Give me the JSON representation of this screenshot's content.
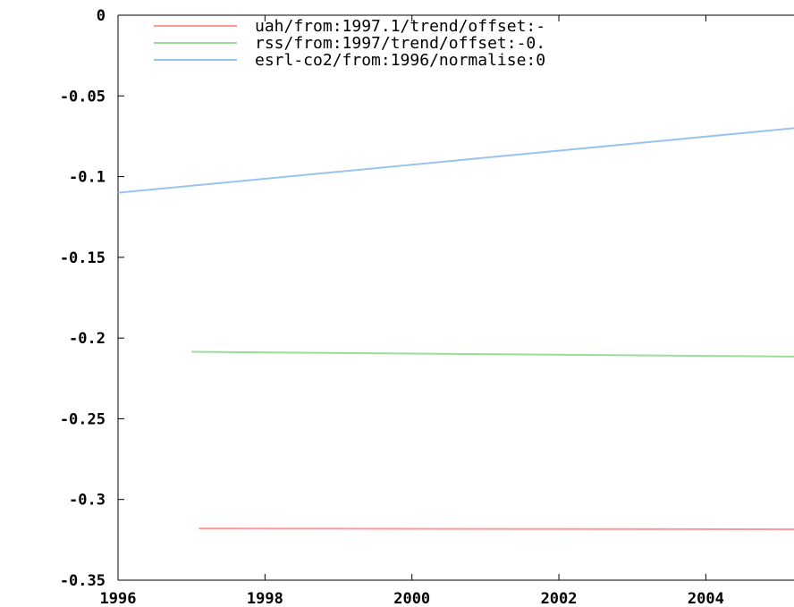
{
  "chart_data": {
    "type": "line",
    "title": "",
    "xlabel": "",
    "ylabel": "",
    "xlim": [
      1996,
      2005.2
    ],
    "ylim": [
      -0.35,
      0
    ],
    "x_ticks": [
      1996,
      1998,
      2000,
      2002,
      2004
    ],
    "x_tick_labels": [
      "1996",
      "1998",
      "2000",
      "2002",
      "2004"
    ],
    "y_ticks": [
      0,
      -0.05,
      -0.1,
      -0.15,
      -0.2,
      -0.25,
      -0.3,
      -0.35
    ],
    "y_tick_labels": [
      "0",
      "-0.05",
      "-0.1",
      "-0.15",
      "-0.2",
      "-0.25",
      "-0.3",
      "-0.35"
    ],
    "grid": false,
    "legend_position": "top-right",
    "series": [
      {
        "name": "uah/from:1997.1/trend/offset:-",
        "color": "#ff9999",
        "x": [
          1997.1,
          2005.2
        ],
        "y": [
          -0.318,
          -0.3185
        ]
      },
      {
        "name": "rss/from:1997/trend/offset:-0.",
        "color": "#99dd99",
        "x": [
          1997.0,
          2005.2
        ],
        "y": [
          -0.2085,
          -0.2115
        ]
      },
      {
        "name": "esrl-co2/from:1996/normalise:0",
        "color": "#99c4ee",
        "x": [
          1996.0,
          2005.2
        ],
        "y": [
          -0.11,
          -0.07
        ]
      }
    ]
  }
}
